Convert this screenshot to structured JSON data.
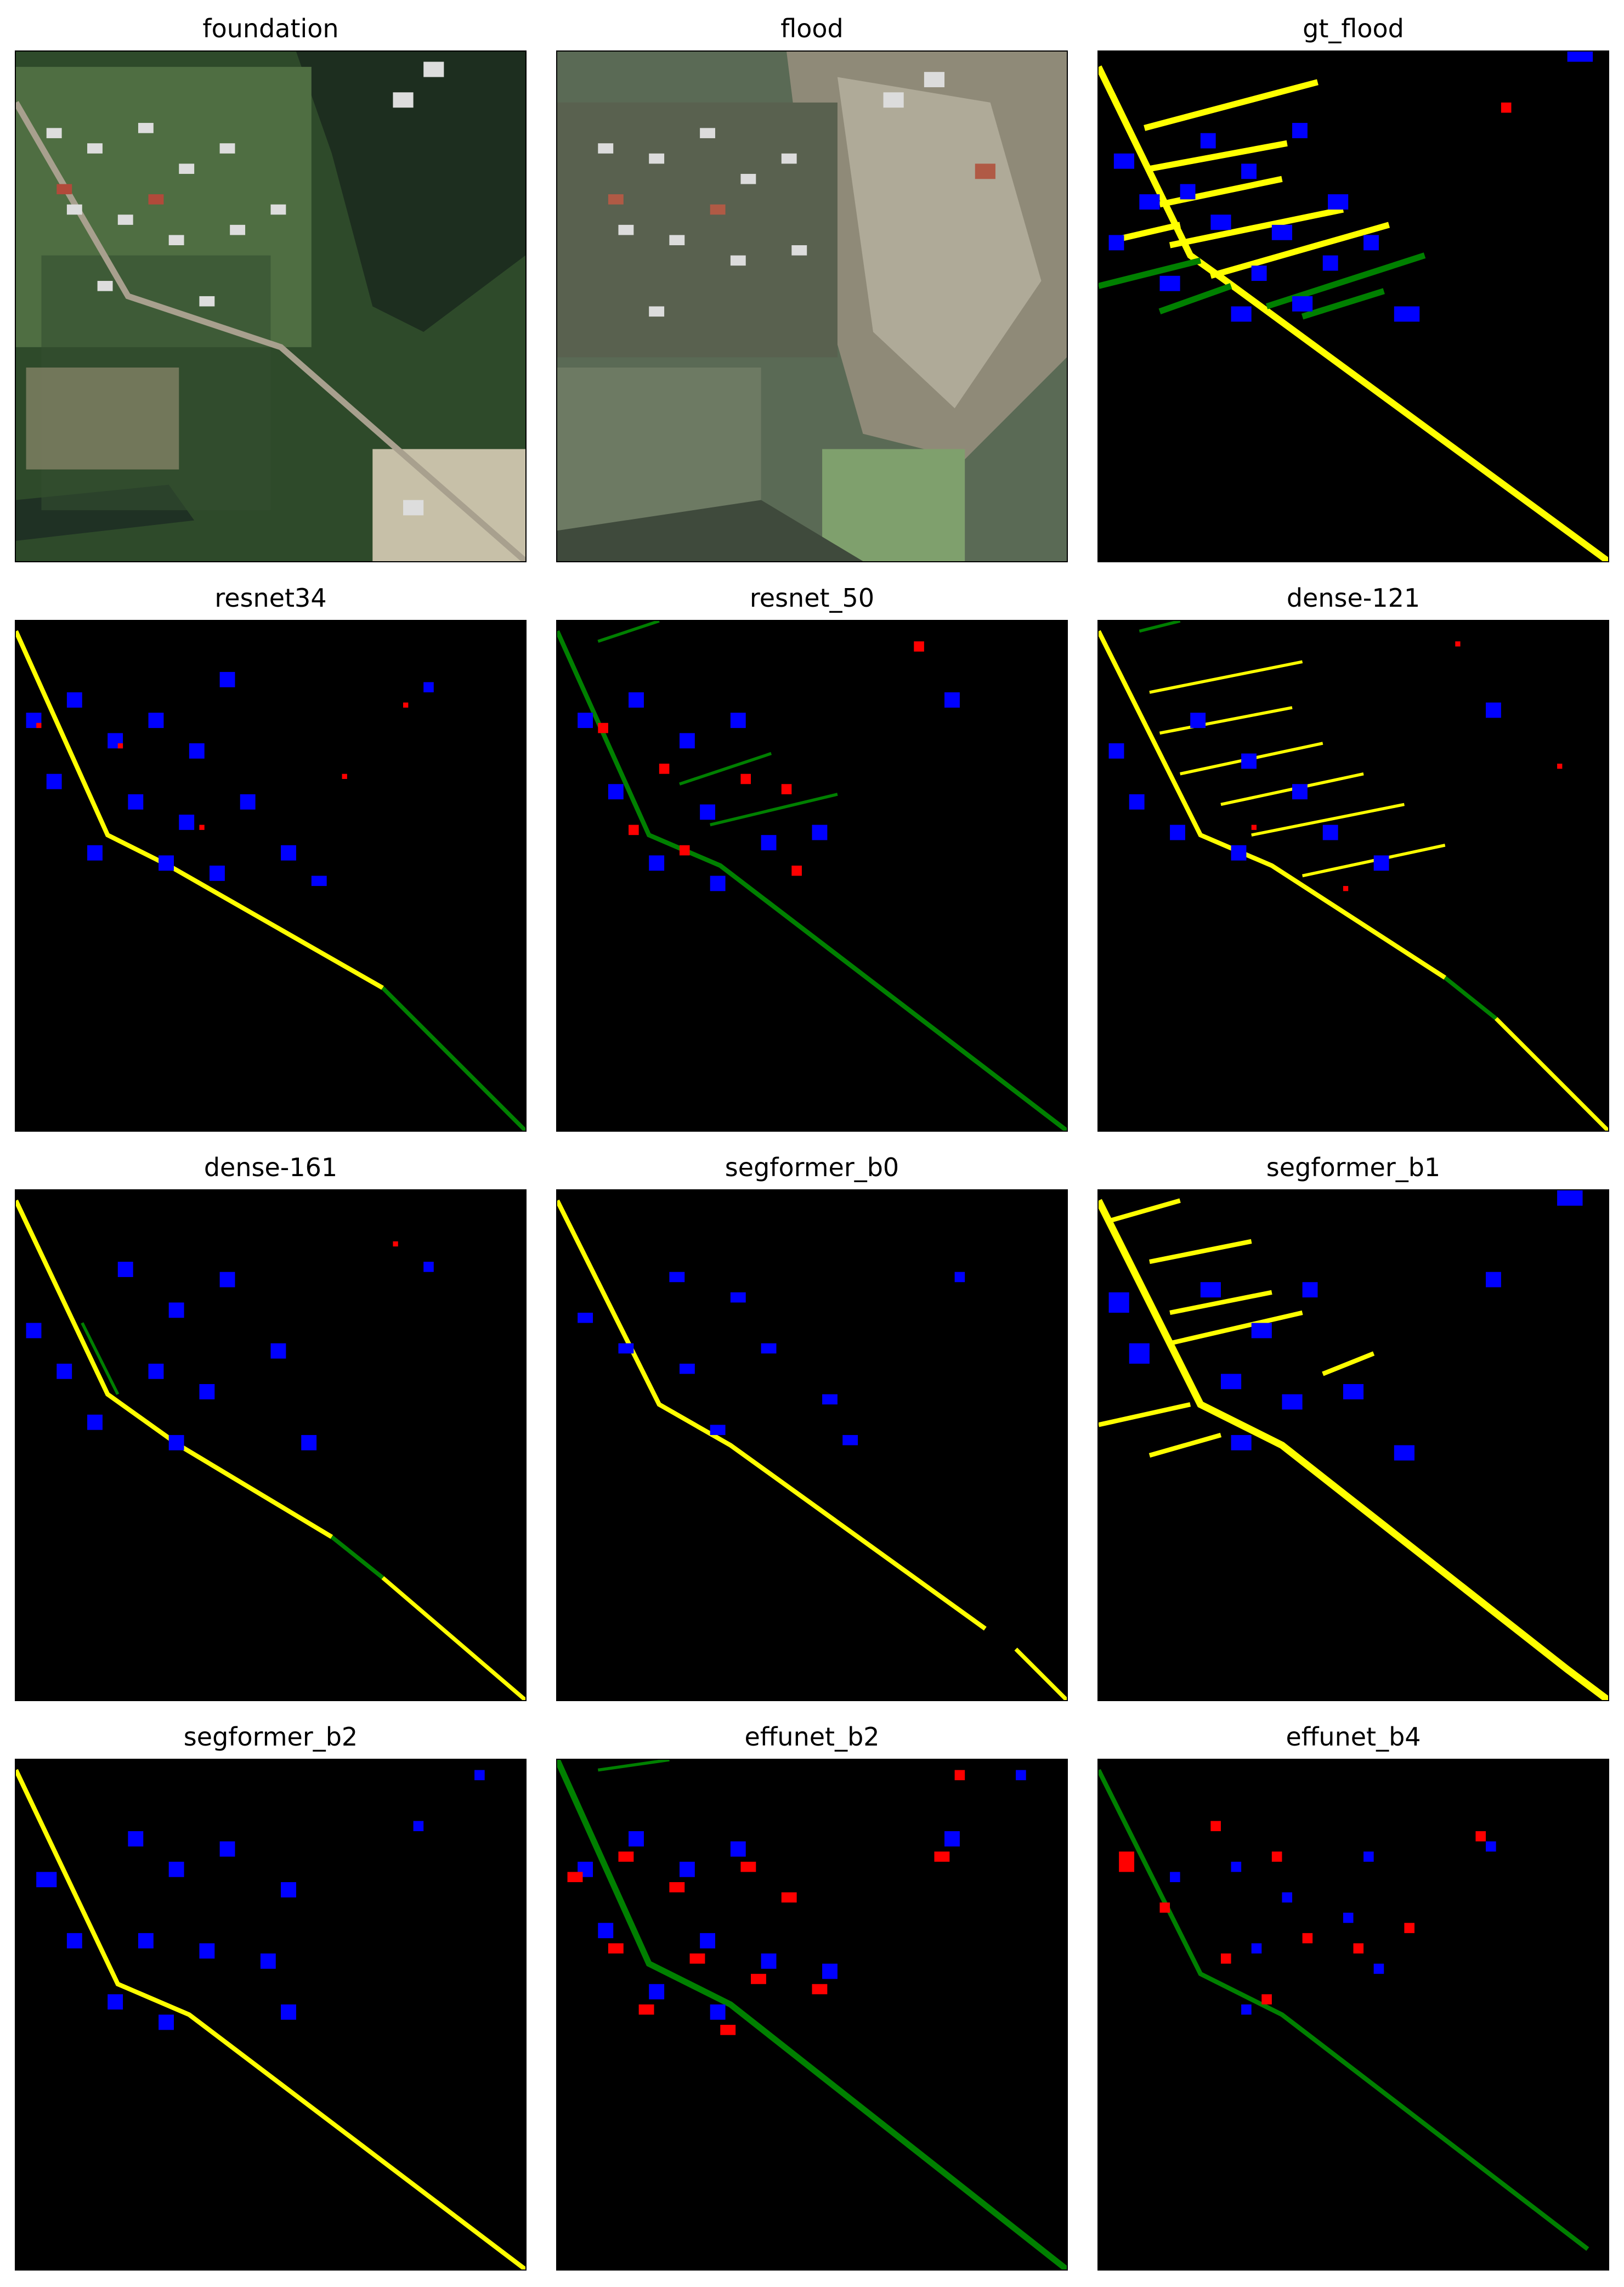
{
  "panels": [
    {
      "title": "foundation",
      "kind": "satellite-foundation"
    },
    {
      "title": "flood",
      "kind": "satellite-flood"
    },
    {
      "title": "gt_flood",
      "kind": "mask"
    },
    {
      "title": "resnet34",
      "kind": "mask"
    },
    {
      "title": "resnet_50",
      "kind": "mask"
    },
    {
      "title": "dense-121",
      "kind": "mask"
    },
    {
      "title": "dense-161",
      "kind": "mask"
    },
    {
      "title": "segformer_b0",
      "kind": "mask"
    },
    {
      "title": "segformer_b1",
      "kind": "mask"
    },
    {
      "title": "segformer_b2",
      "kind": "mask"
    },
    {
      "title": "effunet_b2",
      "kind": "mask"
    },
    {
      "title": "effunet_b4",
      "kind": "mask"
    }
  ],
  "colors": {
    "background": "#000000",
    "non_flooded_building": "#0000ff",
    "flooded_building": "#ff0000",
    "non_flooded_road": "#ffff00",
    "flooded_road": "#008000"
  }
}
